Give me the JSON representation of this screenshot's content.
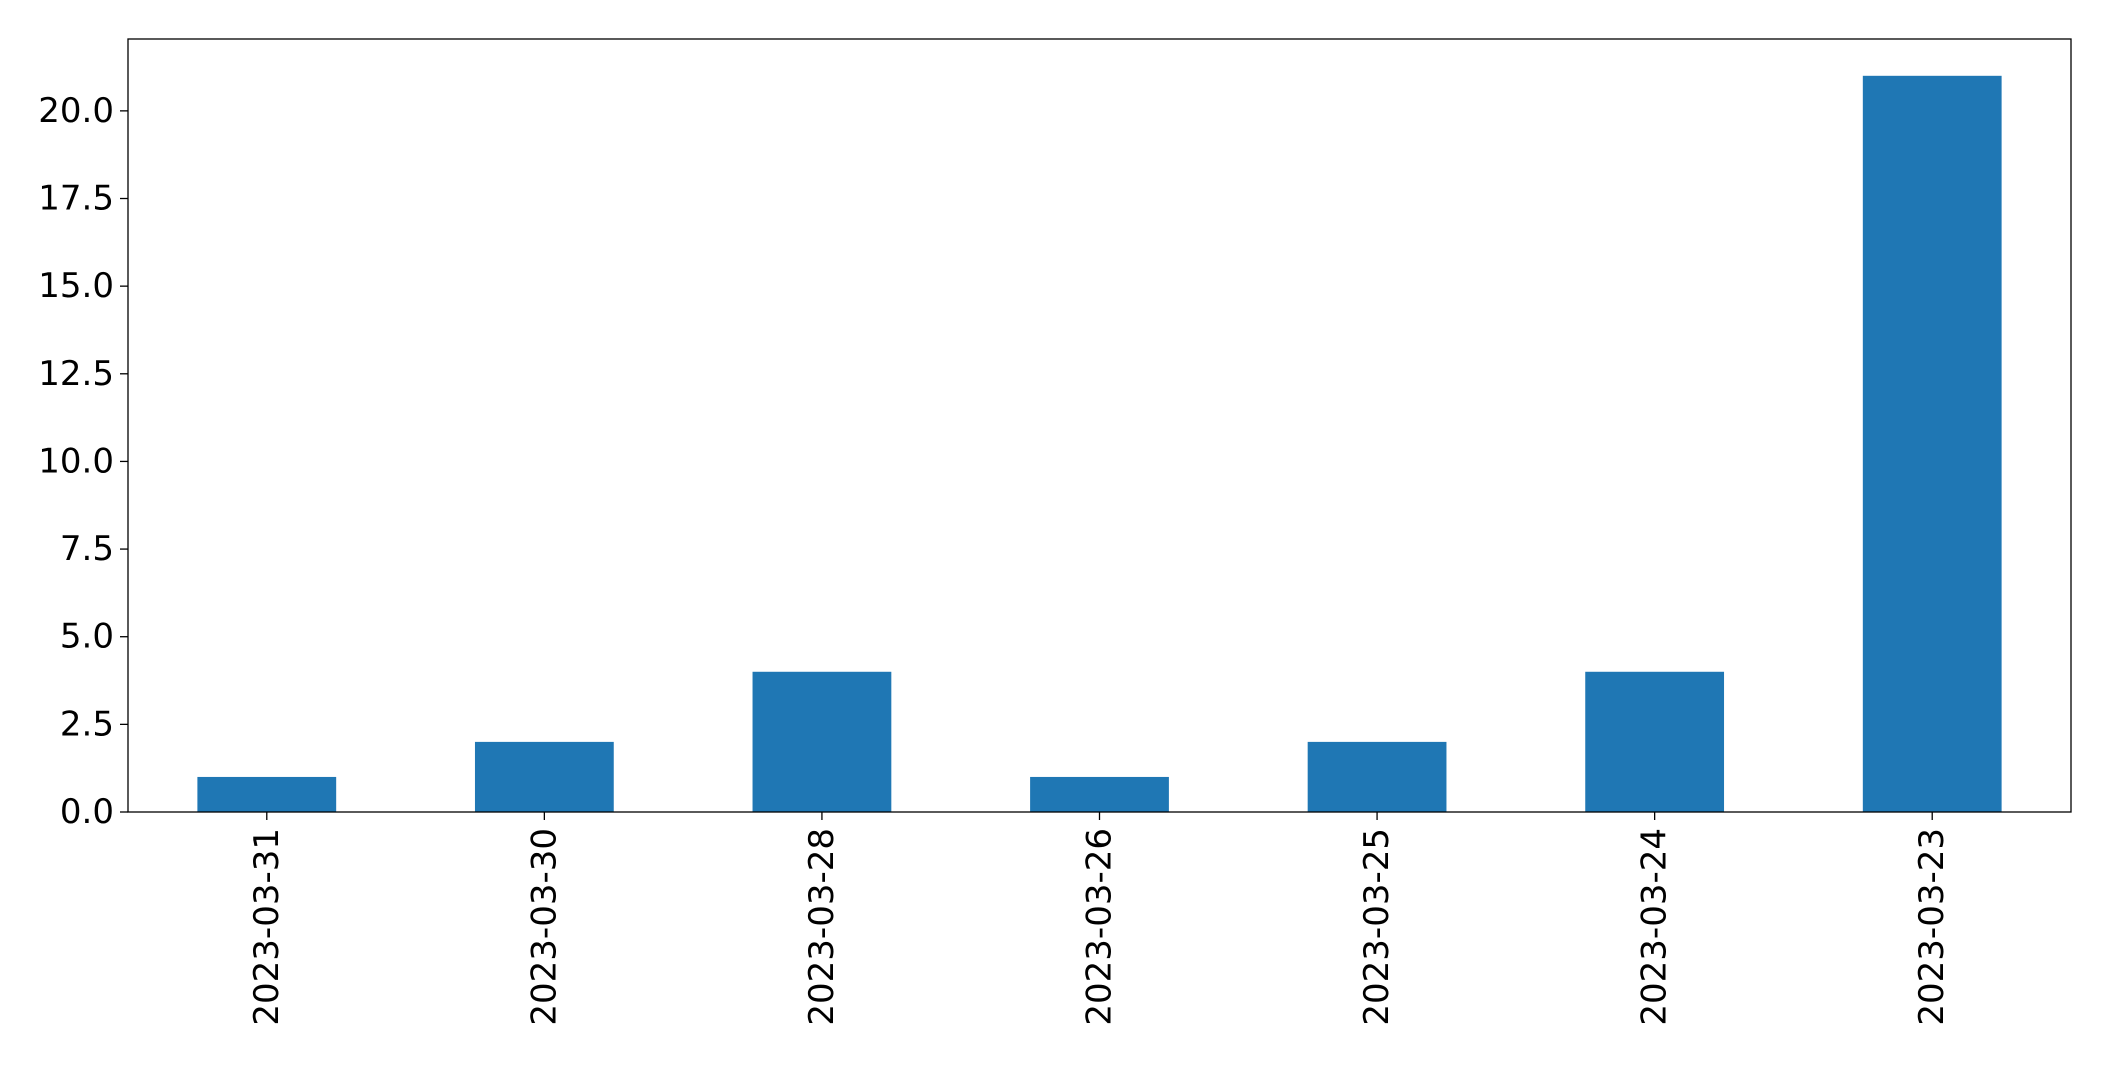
{
  "chart_data": {
    "type": "bar",
    "title": "",
    "xlabel": "",
    "ylabel": "",
    "categories": [
      "2023-03-31",
      "2023-03-30",
      "2023-03-28",
      "2023-03-26",
      "2023-03-25",
      "2023-03-24",
      "2023-03-23"
    ],
    "values": [
      1,
      2,
      4,
      1,
      2,
      4,
      21
    ],
    "ylim": [
      0,
      22.05
    ],
    "yticks": [
      "0.0",
      "2.5",
      "5.0",
      "7.5",
      "10.0",
      "12.5",
      "15.0",
      "17.5",
      "20.0"
    ],
    "ytick_values": [
      0,
      2.5,
      5,
      7.5,
      10,
      12.5,
      15,
      17.5,
      20
    ],
    "grid": false,
    "legend": "none",
    "bar_color": "#1f77b4",
    "axis_color": "#000000",
    "xtick_rotation": "vertical"
  }
}
